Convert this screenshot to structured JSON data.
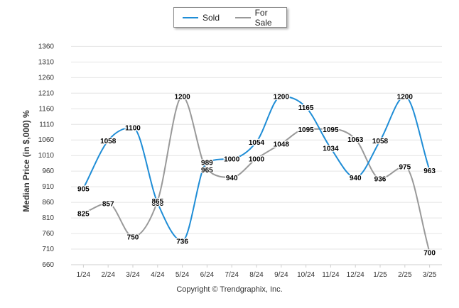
{
  "chart_data": {
    "type": "line",
    "categories": [
      "1/24",
      "2/24",
      "3/24",
      "4/24",
      "5/24",
      "6/24",
      "7/24",
      "8/24",
      "9/24",
      "10/24",
      "11/24",
      "12/24",
      "1/25",
      "2/25",
      "3/25"
    ],
    "series": [
      {
        "name": "Sold",
        "color": "#1f8dd6",
        "values": [
          905,
          1058,
          1100,
          858,
          736,
          989,
          1000,
          1054,
          1200,
          1165,
          1034,
          940,
          1058,
          1200,
          963
        ]
      },
      {
        "name": "For Sale",
        "color": "#999999",
        "values": [
          825,
          857,
          750,
          865,
          1200,
          965,
          940,
          1000,
          1048,
          1095,
          1095,
          1063,
          936,
          975,
          700
        ]
      }
    ],
    "ylabel": "Median Price (in $,000) %",
    "yticks": [
      660,
      710,
      760,
      810,
      860,
      910,
      960,
      1010,
      1060,
      1110,
      1160,
      1210,
      1260,
      1310,
      1360
    ],
    "ylim": [
      660,
      1380
    ],
    "grid": true,
    "legend_position": "top-center"
  },
  "footer": "Copyright © Trendgraphix, Inc."
}
